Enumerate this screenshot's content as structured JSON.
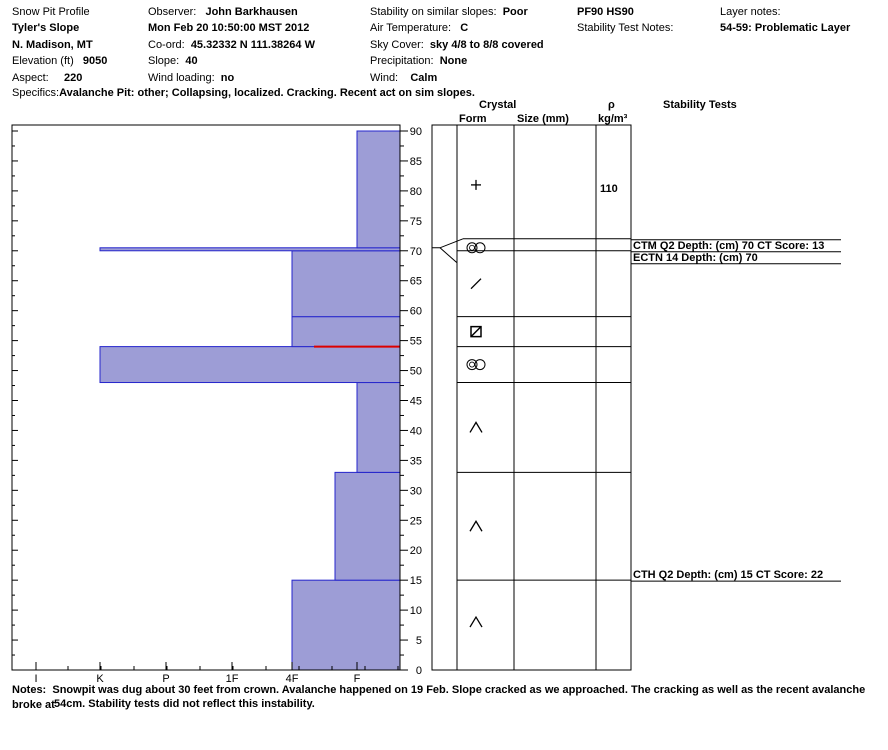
{
  "header": {
    "title": "Snow Pit Profile",
    "location_name": "Tyler's Slope",
    "region": "N. Madison, MT",
    "elevation_label": "Elevation (ft)",
    "elevation_value": "9050",
    "aspect_label": "Aspect:",
    "aspect_value": "220",
    "observer_label": "Observer:",
    "observer_value": "John Barkhausen",
    "datetime": "Mon Feb 20 10:50:00 MST 2012",
    "coord_label": "Co-ord:",
    "coord_value": "45.32332 N 111.38264 W",
    "slope_label": "Slope:",
    "slope_value": "40",
    "wind_loading_label": "Wind loading:",
    "wind_loading_value": "no",
    "stability_label": "Stability on similar slopes:",
    "stability_value": "Poor",
    "air_temp_label": "Air Temperature:",
    "air_temp_value": "C",
    "sky_label": "Sky Cover:",
    "sky_value": "sky 4/8 to 8/8 covered",
    "precip_label": "Precipitation:",
    "precip_value": "None",
    "wind_label": "Wind:",
    "wind_value": "Calm",
    "pf_hs": "PF90 HS90",
    "stability_notes_label": "Stability Test Notes:",
    "layer_notes_label": "Layer notes:",
    "layer_notes_value": "54-59: Problematic Layer",
    "specifics_label": "Specifics:",
    "specifics_value": "Avalanche Pit: other; Collapsing, localized. Cracking. Recent act on sim slopes."
  },
  "columns": {
    "crystal": "Crystal",
    "form": "Form",
    "size": "Size (mm)",
    "rho": "ρ",
    "density_unit": "kg/m³",
    "stability_tests": "Stability Tests"
  },
  "chart_data": {
    "type": "area",
    "title": "",
    "ylabel": "",
    "xlabel": "",
    "y_axis": {
      "range": [
        0,
        90
      ],
      "ticks": [
        "0",
        "5",
        "10",
        "15",
        "20",
        "25",
        "30",
        "35",
        "40",
        "45",
        "50",
        "55",
        "60",
        "65",
        "70",
        "75",
        "80",
        "85",
        "90"
      ]
    },
    "hardness_axis": {
      "labels": [
        "I",
        "K",
        "P",
        "1F",
        "4F",
        "F"
      ],
      "note": "hardness scale; bars extend leftward from the right edge"
    },
    "hardness_layers": [
      {
        "bottom": 0,
        "top": 15,
        "hardness": "4F"
      },
      {
        "bottom": 15,
        "top": 33,
        "hardness": "4F-F"
      },
      {
        "bottom": 33,
        "top": 48,
        "hardness": "F"
      },
      {
        "bottom": 48,
        "top": 54,
        "hardness": "K"
      },
      {
        "bottom": 54,
        "top": 59,
        "hardness": "4F"
      },
      {
        "bottom": 59,
        "top": 70,
        "hardness": "4F"
      },
      {
        "bottom": 70,
        "top": 70.5,
        "hardness": "K"
      },
      {
        "bottom": 70.5,
        "top": 90,
        "hardness": "F"
      }
    ],
    "red_marker_depth": 54,
    "layer_boundaries": [
      15,
      33,
      48,
      54,
      59,
      70,
      72
    ],
    "crystal_forms": [
      {
        "depth": 8,
        "symbol": "^",
        "name": "depth hoar"
      },
      {
        "depth": 24,
        "symbol": "^",
        "name": "depth hoar"
      },
      {
        "depth": 40.5,
        "symbol": "^",
        "name": "depth hoar"
      },
      {
        "depth": 51,
        "symbol": "∞",
        "name": "melt forms"
      },
      {
        "depth": 56.5,
        "symbol": "⧄",
        "name": "faceted"
      },
      {
        "depth": 64.5,
        "symbol": "/",
        "name": "decomposing"
      },
      {
        "depth": 70.5,
        "symbol": "∞",
        "name": "melt forms"
      },
      {
        "depth": 81,
        "symbol": "+",
        "name": "new snow"
      }
    ],
    "density": [
      {
        "depth": 80.5,
        "label": "110"
      }
    ],
    "stability_tests": [
      {
        "depth": 70,
        "label": "CTM Q2 Depth: (cm) 70 CT Score: 13"
      },
      {
        "depth": 68,
        "label": "ECTN 14   Depth: (cm) 70"
      },
      {
        "depth": 15,
        "label": "CTH Q2 Depth: (cm) 15 CT Score: 22"
      }
    ],
    "colors": {
      "fill": "#9d9dd6",
      "edge": "#2525cc",
      "red": "#dd0000"
    }
  },
  "notes": {
    "label": "Notes:",
    "text": "Snowpit was dug about 30 feet from crown. Avalanche happened on 19 Feb. Slope cracked as we approached. The cracking as well as the recent avalanche broke at",
    "text_cont": "54cm. Stability tests did not reflect this instability."
  }
}
